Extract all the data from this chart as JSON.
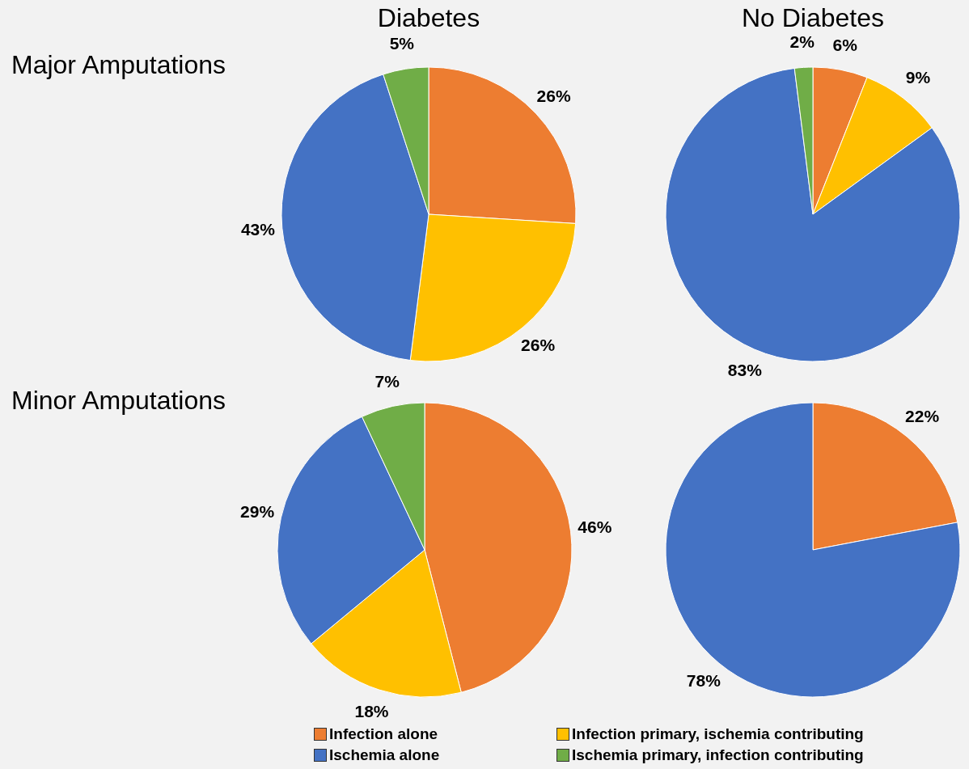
{
  "chart_data": [
    {
      "type": "pie",
      "title": "Diabetes",
      "ylabel": "Major Amputations",
      "legend": "bottom",
      "categories": [
        "Infection alone",
        "Infection primary, ischemia contributing",
        "Ischemia alone",
        "Ischemia primary, infection contributing"
      ],
      "values": [
        26,
        26,
        43,
        5
      ],
      "value_labels": [
        "26%",
        "26%",
        "43%",
        "5%"
      ],
      "colors": [
        "#ed7d31",
        "#ffc000",
        "#4472c4",
        "#70ad47"
      ]
    },
    {
      "type": "pie",
      "title": "No Diabetes",
      "categories": [
        null,
        null,
        null,
        null
      ],
      "values": [
        6,
        9,
        83,
        2
      ],
      "value_labels": [
        "6%",
        "9%",
        "83%",
        "2%"
      ],
      "colors": [
        "#ed7d31",
        "#ffc000",
        "#4472c4",
        "#70ad47"
      ]
    },
    {
      "type": "pie",
      "ylabel": "Minor Amputations",
      "categories": [
        null,
        null,
        null,
        null
      ],
      "values": [
        46,
        18,
        29,
        7
      ],
      "value_labels": [
        "46%",
        "18%",
        "29%",
        "7%"
      ],
      "colors": [
        "#ed7d31",
        "#ffc000",
        "#4472c4",
        "#70ad47"
      ]
    },
    {
      "type": "pie",
      "categories": [
        null,
        null
      ],
      "values": [
        22,
        78
      ],
      "value_labels": [
        "22%",
        "78%"
      ],
      "colors": [
        "#ed7d31",
        "#4472c4"
      ]
    }
  ]
}
